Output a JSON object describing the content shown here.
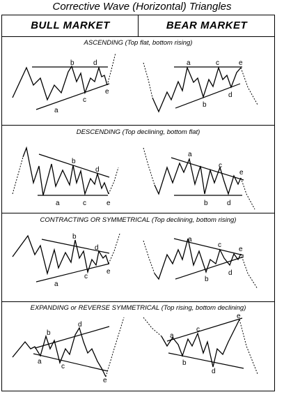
{
  "title": "Corrective Wave (Horizontal) Triangles",
  "columns": {
    "bull": "BULL MARKET",
    "bear": "BEAR MARKET"
  },
  "sections": [
    {
      "id": "ascending",
      "label": "ASCENDING (Top flat, bottom rising)"
    },
    {
      "id": "descending",
      "label": "DESCENDING (Top declining, bottom flat)"
    },
    {
      "id": "contracting",
      "label": "CONTRACTING OR SYMMETRICAL (Top declining, bottom rising)"
    },
    {
      "id": "expanding",
      "label": "EXPANDING or REVERSE SYMMETRICAL (Top rising, bottom declining)"
    }
  ],
  "wave_labels": [
    "a",
    "b",
    "c",
    "d",
    "e"
  ]
}
